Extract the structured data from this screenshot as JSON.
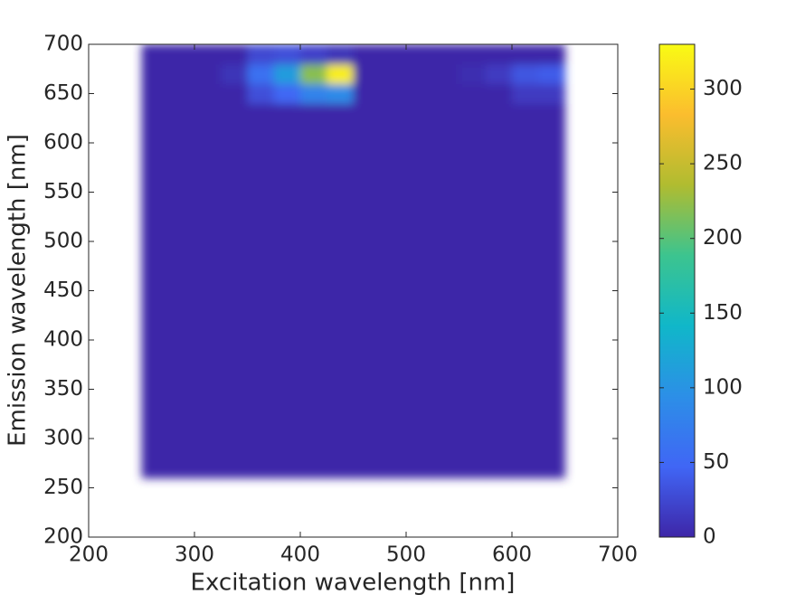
{
  "chart_data": {
    "type": "heatmap",
    "xlabel": "Excitation wavelength [nm]",
    "ylabel": "Emission wavelength [nm]",
    "xlim": [
      200,
      700
    ],
    "xticks": [
      200,
      300,
      400,
      500,
      600,
      700
    ],
    "ylim": [
      200,
      700
    ],
    "yticks": [
      200,
      250,
      300,
      350,
      400,
      450,
      500,
      550,
      600,
      650,
      700
    ],
    "x": [
      250,
      275,
      300,
      325,
      350,
      375,
      400,
      425,
      450,
      475,
      500,
      525,
      550,
      575,
      600,
      625,
      650
    ],
    "y": [
      260,
      280,
      300,
      320,
      340,
      360,
      380,
      400,
      420,
      440,
      460,
      480,
      500,
      520,
      540,
      560,
      580,
      600,
      620,
      640,
      660,
      680,
      700
    ],
    "z": [
      [
        0,
        0,
        0,
        0,
        0,
        0,
        0,
        0,
        0,
        0,
        0,
        0,
        0,
        0,
        0,
        0
      ],
      [
        0,
        0,
        0,
        0,
        0,
        0,
        0,
        0,
        0,
        0,
        0,
        0,
        0,
        0,
        0,
        0
      ],
      [
        0,
        0,
        0,
        0,
        0,
        0,
        0,
        0,
        0,
        0,
        0,
        0,
        0,
        0,
        0,
        0
      ],
      [
        0,
        0,
        0,
        0,
        0,
        0,
        0,
        0,
        0,
        0,
        0,
        0,
        0,
        0,
        0,
        0
      ],
      [
        0,
        0,
        0,
        0,
        0,
        0,
        0,
        0,
        0,
        0,
        0,
        0,
        0,
        0,
        0,
        0
      ],
      [
        0,
        0,
        0,
        0,
        0,
        0,
        0,
        0,
        0,
        0,
        0,
        0,
        0,
        0,
        0,
        0
      ],
      [
        0,
        0,
        0,
        0,
        0,
        0,
        0,
        0,
        0,
        0,
        0,
        0,
        0,
        0,
        0,
        0
      ],
      [
        0,
        0,
        0,
        0,
        0,
        0,
        0,
        0,
        0,
        0,
        0,
        0,
        0,
        0,
        0,
        0
      ],
      [
        0,
        0,
        0,
        0,
        0,
        0,
        0,
        0,
        0,
        0,
        0,
        0,
        0,
        0,
        0,
        0
      ],
      [
        0,
        0,
        0,
        0,
        0,
        0,
        0,
        0,
        0,
        0,
        0,
        0,
        0,
        0,
        0,
        0
      ],
      [
        0,
        0,
        0,
        0,
        0,
        0,
        0,
        0,
        0,
        0,
        0,
        0,
        0,
        0,
        0,
        0
      ],
      [
        0,
        0,
        0,
        0,
        0,
        0,
        0,
        0,
        0,
        0,
        0,
        0,
        0,
        0,
        0,
        0
      ],
      [
        0,
        0,
        0,
        0,
        0,
        0,
        0,
        0,
        0,
        0,
        0,
        0,
        0,
        0,
        0,
        0
      ],
      [
        0,
        0,
        0,
        0,
        0,
        0,
        0,
        0,
        0,
        0,
        0,
        0,
        0,
        0,
        0,
        0
      ],
      [
        0,
        0,
        0,
        0,
        0,
        0,
        0,
        0,
        0,
        0,
        0,
        0,
        0,
        0,
        0,
        0
      ],
      [
        0,
        0,
        0,
        0,
        0,
        0,
        0,
        0,
        0,
        0,
        0,
        0,
        0,
        0,
        0,
        0
      ],
      [
        0,
        0,
        0,
        0,
        0,
        0,
        0,
        0,
        0,
        0,
        0,
        0,
        0,
        0,
        0,
        0
      ],
      [
        0,
        0,
        0,
        0,
        0,
        0,
        0,
        0,
        0,
        0,
        0,
        0,
        0,
        0,
        0,
        0
      ],
      [
        0,
        0,
        0,
        0,
        0,
        0,
        0,
        0,
        0,
        0,
        0,
        0,
        0,
        0,
        0,
        0
      ],
      [
        0,
        0,
        0,
        0,
        30,
        50,
        80,
        90,
        0,
        0,
        0,
        0,
        0,
        0,
        15,
        15
      ],
      [
        0,
        0,
        0,
        10,
        60,
        110,
        220,
        320,
        0,
        0,
        0,
        0,
        5,
        15,
        35,
        40
      ],
      [
        0,
        0,
        0,
        0,
        25,
        30,
        20,
        10,
        0,
        0,
        0,
        0,
        0,
        0,
        0,
        0
      ]
    ],
    "clim": [
      0,
      330
    ],
    "cticks": [
      0,
      50,
      100,
      150,
      200,
      250,
      300
    ],
    "colormap": [
      "#3e26a8",
      "#4066f5",
      "#2c8fe7",
      "#10b7c9",
      "#3cc48f",
      "#b0bc30",
      "#fbbd2e",
      "#f9fb14"
    ]
  }
}
